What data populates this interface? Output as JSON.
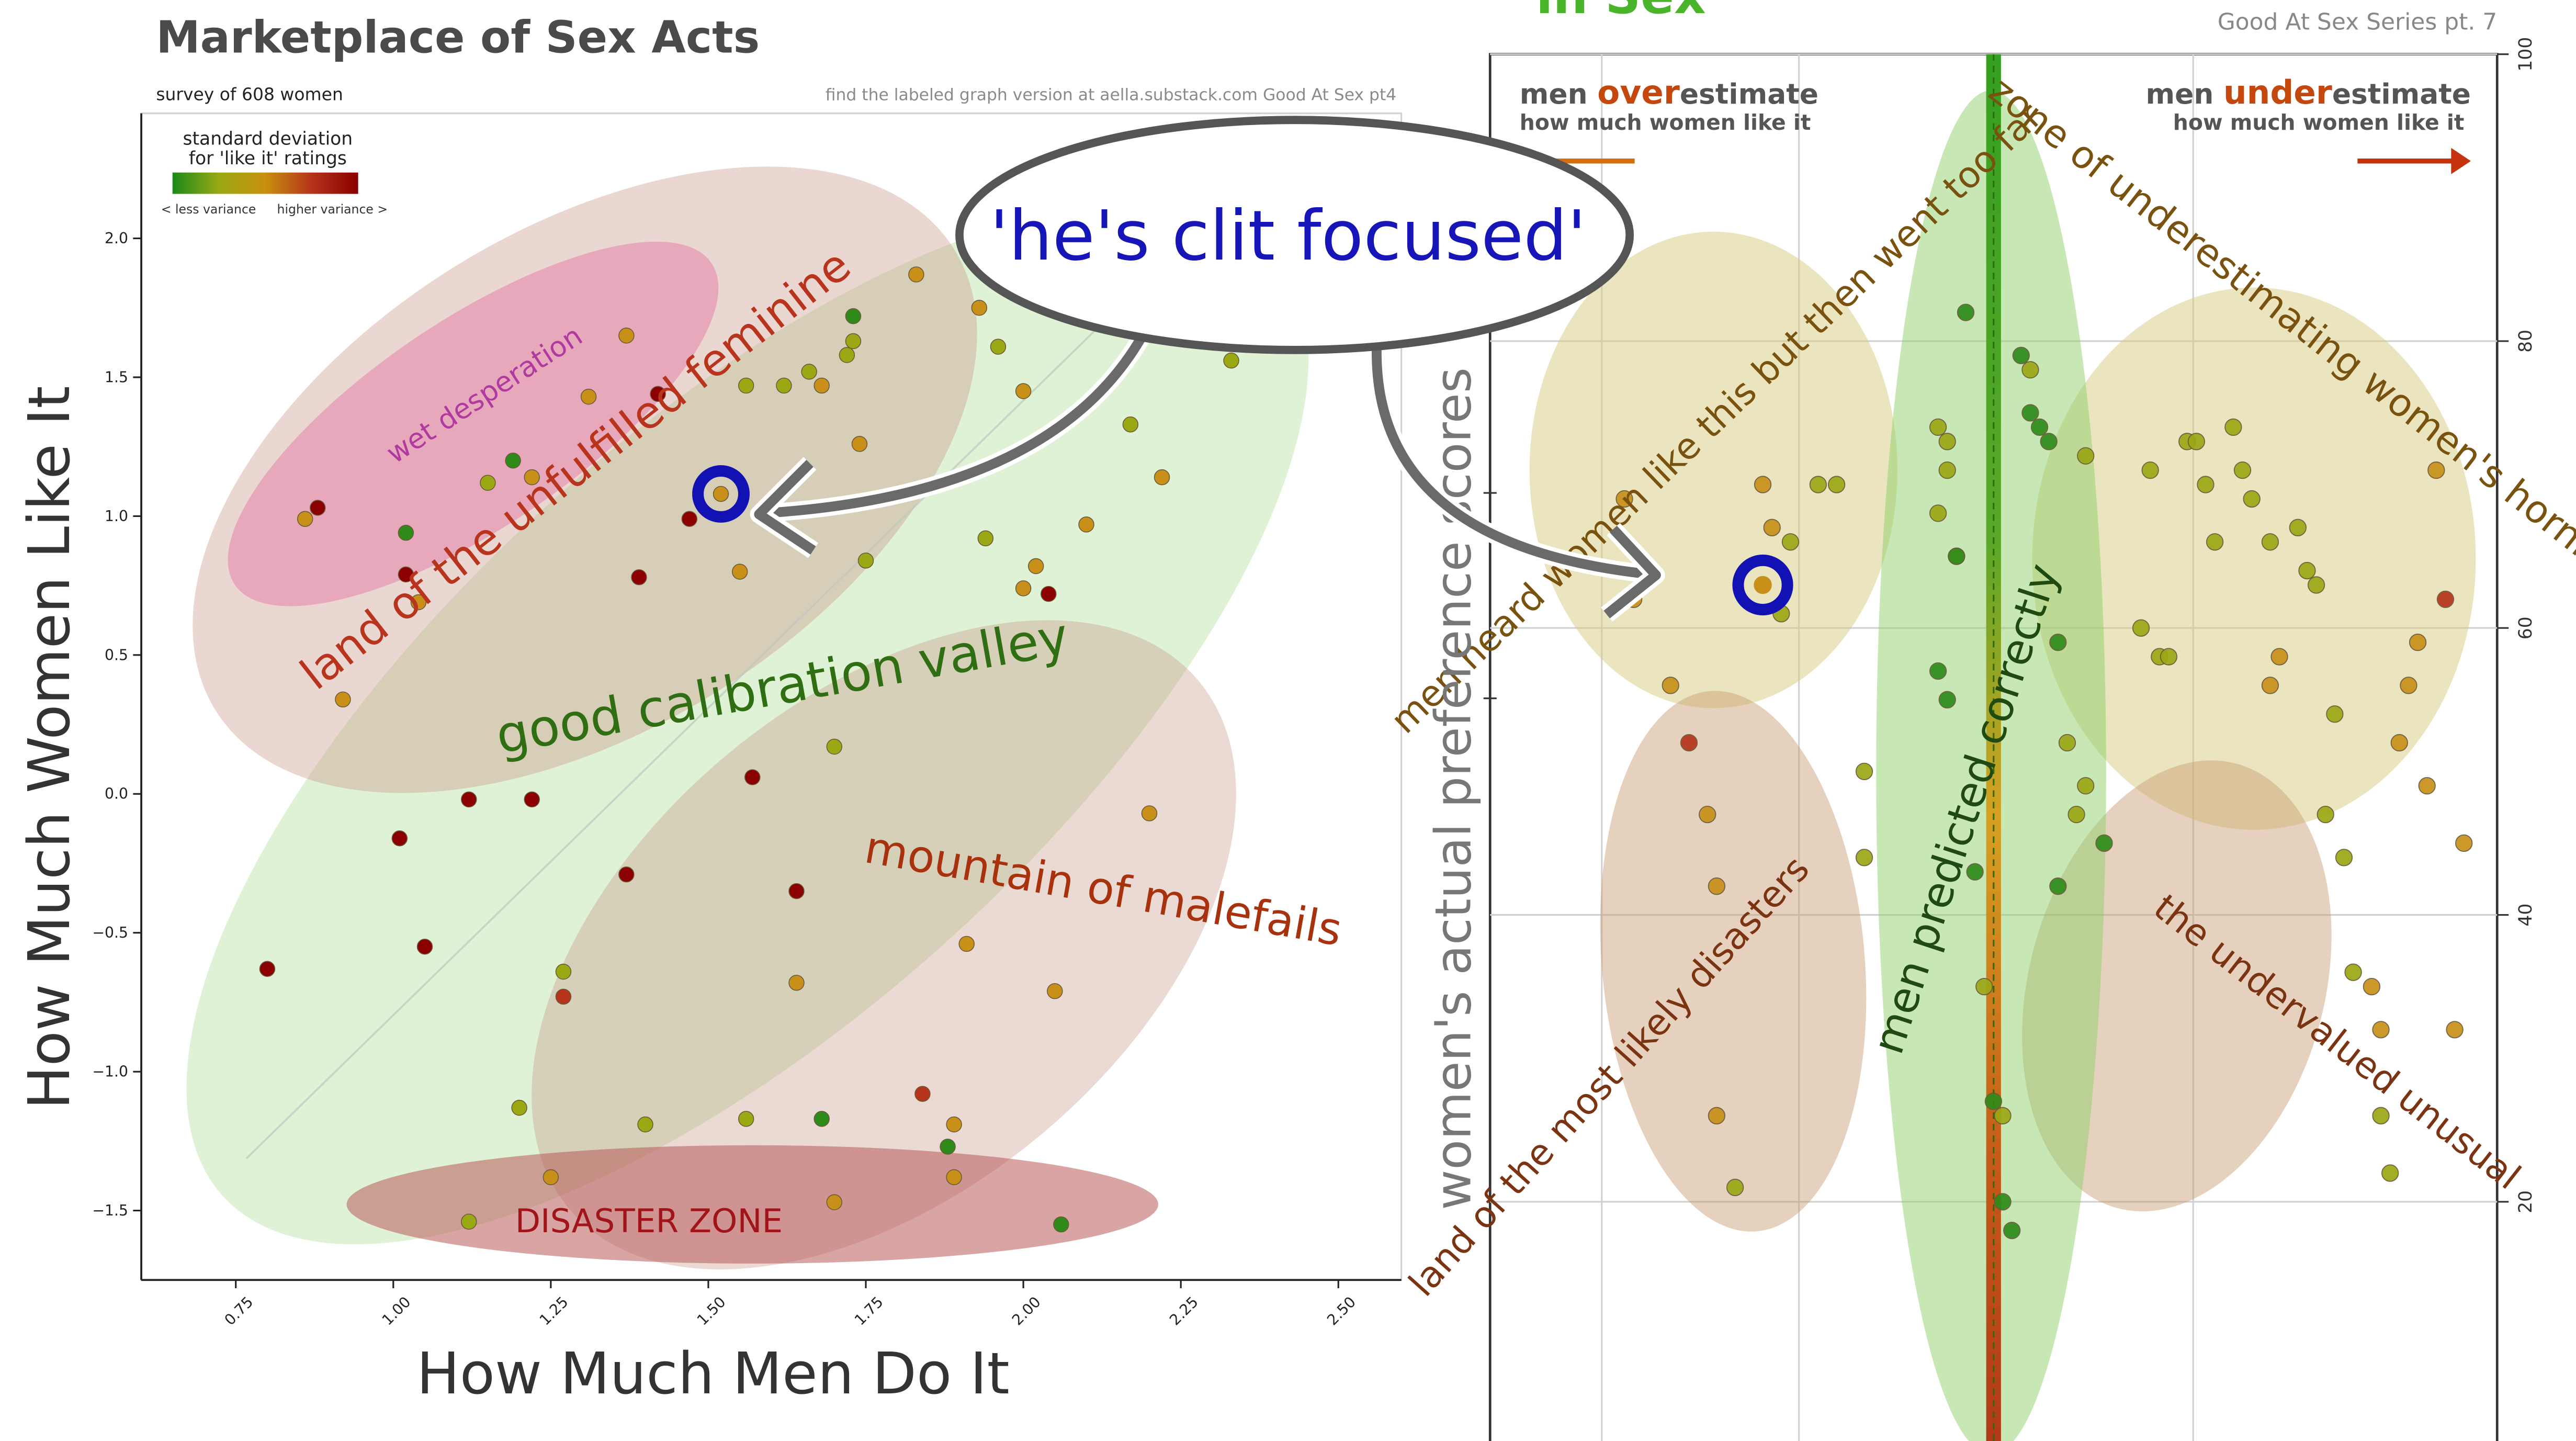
{
  "left": {
    "title": "Marketplace of Sex Acts",
    "subtitle": "survey of 608 women",
    "credit": "find the labeled graph version at aella.substack.com Good At Sex pt4",
    "legend": {
      "title_line1": "standard deviation",
      "title_line2": "for 'like it' ratings",
      "less": "< less variance",
      "higher": "higher variance >"
    },
    "xlabel": "How Much Men Do It",
    "ylabel": "How Much Women Like It",
    "zones": {
      "wet": "wet desperation",
      "land": "land of the unfulfilled feminine",
      "valley": "good calibration valley",
      "mountain": "mountain of malefails",
      "disaster": "DISASTER ZONE"
    }
  },
  "callout": "'he's clit focused'",
  "right": {
    "title_fragment": "in Sex",
    "series": "Good At Sex Series pt. 7",
    "over_pre": "men ",
    "over_hl": "over",
    "over_post": "estimate",
    "over_sub": "how much women like it",
    "under_pre": "men ",
    "under_hl": "under",
    "under_post": "estimate",
    "under_sub": "how much women like it",
    "ylabel": "women's actual preference scores",
    "zones": {
      "heard": "men heard women like this but then went too far",
      "horny": "zone of underestimating women's horniness",
      "predicted": "men predicted correctly",
      "disasters": "land of the most likely disasters",
      "undervalued": "the undervalued unusual"
    }
  },
  "colors": {
    "low": "#2e8b1a",
    "mid1": "#9aa814",
    "mid2": "#c89018",
    "high1": "#b5341a",
    "high2": "#8b0000",
    "accent_orange": "#c4470e",
    "callout_blue": "#1616b8",
    "highlight_ring": "#1212b4"
  },
  "chart_data": [
    {
      "type": "scatter",
      "title": "Marketplace of Sex Acts",
      "xlabel": "How Much Men Do It",
      "ylabel": "How Much Women Like It",
      "xlim": [
        0.6,
        2.6
      ],
      "ylim": [
        -1.75,
        2.45
      ],
      "x_ticks": [
        "0.75",
        "1.00",
        "1.25",
        "1.50",
        "1.75",
        "2.00",
        "2.25",
        "2.50"
      ],
      "y_ticks": [
        "2.0",
        "1.5",
        "1.0",
        "0.5",
        "0.0",
        "-0.5",
        "-1.0",
        "-1.5"
      ],
      "highlight": {
        "x": 1.52,
        "y": 1.08
      },
      "points": [
        {
          "x": 0.86,
          "y": 0.99,
          "c": "mid2"
        },
        {
          "x": 0.88,
          "y": 1.03,
          "c": "high2"
        },
        {
          "x": 0.92,
          "y": 0.34,
          "c": "mid2"
        },
        {
          "x": 0.8,
          "y": -0.63,
          "c": "high2"
        },
        {
          "x": 1.02,
          "y": 0.94,
          "c": "low"
        },
        {
          "x": 1.02,
          "y": 0.79,
          "c": "high2"
        },
        {
          "x": 1.04,
          "y": 0.69,
          "c": "mid2"
        },
        {
          "x": 1.01,
          "y": -0.16,
          "c": "high2"
        },
        {
          "x": 1.05,
          "y": -0.55,
          "c": "high2"
        },
        {
          "x": 1.12,
          "y": -1.54,
          "c": "mid1"
        },
        {
          "x": 1.15,
          "y": 1.12,
          "c": "mid1"
        },
        {
          "x": 1.19,
          "y": 1.2,
          "c": "low"
        },
        {
          "x": 1.12,
          "y": -0.02,
          "c": "high2"
        },
        {
          "x": 1.22,
          "y": 1.14,
          "c": "mid2"
        },
        {
          "x": 1.22,
          "y": -0.02,
          "c": "high2"
        },
        {
          "x": 1.2,
          "y": -1.13,
          "c": "mid1"
        },
        {
          "x": 1.25,
          "y": -1.38,
          "c": "mid2"
        },
        {
          "x": 1.27,
          "y": -0.64,
          "c": "mid1"
        },
        {
          "x": 1.27,
          "y": -0.73,
          "c": "high1"
        },
        {
          "x": 1.31,
          "y": 1.43,
          "c": "mid2"
        },
        {
          "x": 1.37,
          "y": 1.65,
          "c": "mid2"
        },
        {
          "x": 1.37,
          "y": -0.29,
          "c": "high2"
        },
        {
          "x": 1.39,
          "y": 0.78,
          "c": "high2"
        },
        {
          "x": 1.4,
          "y": -1.19,
          "c": "mid1"
        },
        {
          "x": 1.42,
          "y": 1.44,
          "c": "high2"
        },
        {
          "x": 1.47,
          "y": 0.99,
          "c": "high2"
        },
        {
          "x": 1.52,
          "y": 1.08,
          "c": "mid2"
        },
        {
          "x": 1.56,
          "y": 1.47,
          "c": "mid1"
        },
        {
          "x": 1.56,
          "y": -1.17,
          "c": "mid1"
        },
        {
          "x": 1.57,
          "y": 0.06,
          "c": "high2"
        },
        {
          "x": 1.55,
          "y": 0.8,
          "c": "mid2"
        },
        {
          "x": 1.62,
          "y": 1.47,
          "c": "mid1"
        },
        {
          "x": 1.64,
          "y": -0.35,
          "c": "high2"
        },
        {
          "x": 1.64,
          "y": -0.68,
          "c": "mid2"
        },
        {
          "x": 1.66,
          "y": 1.52,
          "c": "mid1"
        },
        {
          "x": 1.68,
          "y": 1.47,
          "c": "mid2"
        },
        {
          "x": 1.68,
          "y": -1.17,
          "c": "low"
        },
        {
          "x": 1.7,
          "y": 0.17,
          "c": "mid1"
        },
        {
          "x": 1.7,
          "y": -1.47,
          "c": "mid2"
        },
        {
          "x": 1.72,
          "y": 1.58,
          "c": "mid1"
        },
        {
          "x": 1.73,
          "y": 1.63,
          "c": "mid1"
        },
        {
          "x": 1.73,
          "y": 1.72,
          "c": "low"
        },
        {
          "x": 1.74,
          "y": 1.26,
          "c": "mid2"
        },
        {
          "x": 1.75,
          "y": 0.84,
          "c": "mid1"
        },
        {
          "x": 1.83,
          "y": 1.87,
          "c": "mid2"
        },
        {
          "x": 1.84,
          "y": -1.08,
          "c": "high1"
        },
        {
          "x": 1.88,
          "y": -1.27,
          "c": "low"
        },
        {
          "x": 1.89,
          "y": -1.19,
          "c": "mid2"
        },
        {
          "x": 1.89,
          "y": -1.38,
          "c": "mid2"
        },
        {
          "x": 1.93,
          "y": 1.75,
          "c": "mid2"
        },
        {
          "x": 1.91,
          "y": -0.54,
          "c": "mid2"
        },
        {
          "x": 1.94,
          "y": 0.92,
          "c": "mid1"
        },
        {
          "x": 1.96,
          "y": 1.61,
          "c": "mid1"
        },
        {
          "x": 2.0,
          "y": 1.45,
          "c": "mid2"
        },
        {
          "x": 2.0,
          "y": 0.74,
          "c": "mid2"
        },
        {
          "x": 2.02,
          "y": 0.82,
          "c": "mid2"
        },
        {
          "x": 2.04,
          "y": 0.72,
          "c": "high2"
        },
        {
          "x": 2.05,
          "y": -0.71,
          "c": "mid2"
        },
        {
          "x": 2.06,
          "y": -1.55,
          "c": "low"
        },
        {
          "x": 2.1,
          "y": 0.97,
          "c": "mid2"
        },
        {
          "x": 2.17,
          "y": 1.33,
          "c": "mid1"
        },
        {
          "x": 2.2,
          "y": -0.07,
          "c": "mid2"
        },
        {
          "x": 2.22,
          "y": 1.14,
          "c": "mid2"
        },
        {
          "x": 2.33,
          "y": 1.56,
          "c": "mid1"
        }
      ]
    },
    {
      "type": "scatter",
      "title": "in Sex",
      "ylabel": "women's actual preference scores",
      "xlim": [
        0,
        100
      ],
      "ylim": [
        0,
        100
      ],
      "y_ticks": [
        "100",
        "80",
        "60",
        "40",
        "20"
      ],
      "highlight": {
        "x": 26,
        "y": 63
      },
      "points": [
        {
          "x": 11,
          "y": 69,
          "c": "mid2"
        },
        {
          "x": 12,
          "y": 62,
          "c": "mid2"
        },
        {
          "x": 16,
          "y": 56,
          "c": "mid2"
        },
        {
          "x": 18,
          "y": 52,
          "c": "high1"
        },
        {
          "x": 20,
          "y": 47,
          "c": "mid2"
        },
        {
          "x": 21,
          "y": 42,
          "c": "mid2"
        },
        {
          "x": 21,
          "y": 26,
          "c": "mid2"
        },
        {
          "x": 23,
          "y": 21,
          "c": "mid1"
        },
        {
          "x": 26,
          "y": 70,
          "c": "mid2"
        },
        {
          "x": 27,
          "y": 67,
          "c": "mid2"
        },
        {
          "x": 28,
          "y": 61,
          "c": "mid1"
        },
        {
          "x": 29,
          "y": 66,
          "c": "mid1"
        },
        {
          "x": 32,
          "y": 70,
          "c": "mid1"
        },
        {
          "x": 34,
          "y": 70,
          "c": "mid1"
        },
        {
          "x": 37,
          "y": 44,
          "c": "mid1"
        },
        {
          "x": 37,
          "y": 50,
          "c": "mid1"
        },
        {
          "x": 45,
          "y": 74,
          "c": "mid1"
        },
        {
          "x": 45,
          "y": 68,
          "c": "mid1"
        },
        {
          "x": 46,
          "y": 73,
          "c": "mid1"
        },
        {
          "x": 46,
          "y": 71,
          "c": "mid1"
        },
        {
          "x": 47,
          "y": 65,
          "c": "mid1"
        },
        {
          "x": 45,
          "y": 57,
          "c": "low"
        },
        {
          "x": 46,
          "y": 55,
          "c": "low"
        },
        {
          "x": 47,
          "y": 65,
          "c": "low"
        },
        {
          "x": 48,
          "y": 82,
          "c": "low"
        },
        {
          "x": 49,
          "y": 43,
          "c": "low"
        },
        {
          "x": 50,
          "y": 35,
          "c": "mid1"
        },
        {
          "x": 51,
          "y": 27,
          "c": "low"
        },
        {
          "x": 52,
          "y": 26,
          "c": "mid1"
        },
        {
          "x": 52,
          "y": 20,
          "c": "low"
        },
        {
          "x": 53,
          "y": 18,
          "c": "low"
        },
        {
          "x": 54,
          "y": 79,
          "c": "low"
        },
        {
          "x": 55,
          "y": 75,
          "c": "low"
        },
        {
          "x": 55,
          "y": 78,
          "c": "mid1"
        },
        {
          "x": 56,
          "y": 74,
          "c": "low"
        },
        {
          "x": 57,
          "y": 73,
          "c": "low"
        },
        {
          "x": 58,
          "y": 59,
          "c": "low"
        },
        {
          "x": 58,
          "y": 42,
          "c": "low"
        },
        {
          "x": 59,
          "y": 52,
          "c": "mid1"
        },
        {
          "x": 60,
          "y": 47,
          "c": "mid1"
        },
        {
          "x": 61,
          "y": 72,
          "c": "mid1"
        },
        {
          "x": 61,
          "y": 49,
          "c": "mid1"
        },
        {
          "x": 63,
          "y": 45,
          "c": "low"
        },
        {
          "x": 67,
          "y": 60,
          "c": "mid1"
        },
        {
          "x": 68,
          "y": 71,
          "c": "mid1"
        },
        {
          "x": 69,
          "y": 58,
          "c": "mid1"
        },
        {
          "x": 70,
          "y": 58,
          "c": "mid1"
        },
        {
          "x": 72,
          "y": 73,
          "c": "mid1"
        },
        {
          "x": 73,
          "y": 73,
          "c": "mid1"
        },
        {
          "x": 74,
          "y": 70,
          "c": "mid1"
        },
        {
          "x": 75,
          "y": 66,
          "c": "mid1"
        },
        {
          "x": 77,
          "y": 74,
          "c": "mid1"
        },
        {
          "x": 78,
          "y": 71,
          "c": "mid1"
        },
        {
          "x": 79,
          "y": 69,
          "c": "mid1"
        },
        {
          "x": 81,
          "y": 66,
          "c": "mid1"
        },
        {
          "x": 81,
          "y": 56,
          "c": "mid2"
        },
        {
          "x": 82,
          "y": 58,
          "c": "mid2"
        },
        {
          "x": 84,
          "y": 67,
          "c": "mid1"
        },
        {
          "x": 85,
          "y": 64,
          "c": "mid1"
        },
        {
          "x": 86,
          "y": 63,
          "c": "mid1"
        },
        {
          "x": 87,
          "y": 47,
          "c": "mid1"
        },
        {
          "x": 88,
          "y": 54,
          "c": "mid1"
        },
        {
          "x": 89,
          "y": 44,
          "c": "mid1"
        },
        {
          "x": 90,
          "y": 36,
          "c": "mid1"
        },
        {
          "x": 92,
          "y": 35,
          "c": "mid2"
        },
        {
          "x": 93,
          "y": 32,
          "c": "mid2"
        },
        {
          "x": 93,
          "y": 26,
          "c": "mid1"
        },
        {
          "x": 94,
          "y": 22,
          "c": "mid1"
        },
        {
          "x": 95,
          "y": 52,
          "c": "mid2"
        },
        {
          "x": 96,
          "y": 56,
          "c": "mid2"
        },
        {
          "x": 97,
          "y": 59,
          "c": "mid2"
        },
        {
          "x": 98,
          "y": 49,
          "c": "mid2"
        },
        {
          "x": 99,
          "y": 71,
          "c": "mid2"
        },
        {
          "x": 100,
          "y": 62,
          "c": "high1"
        },
        {
          "x": 101,
          "y": 32,
          "c": "mid2"
        },
        {
          "x": 102,
          "y": 45,
          "c": "mid2"
        }
      ]
    }
  ]
}
